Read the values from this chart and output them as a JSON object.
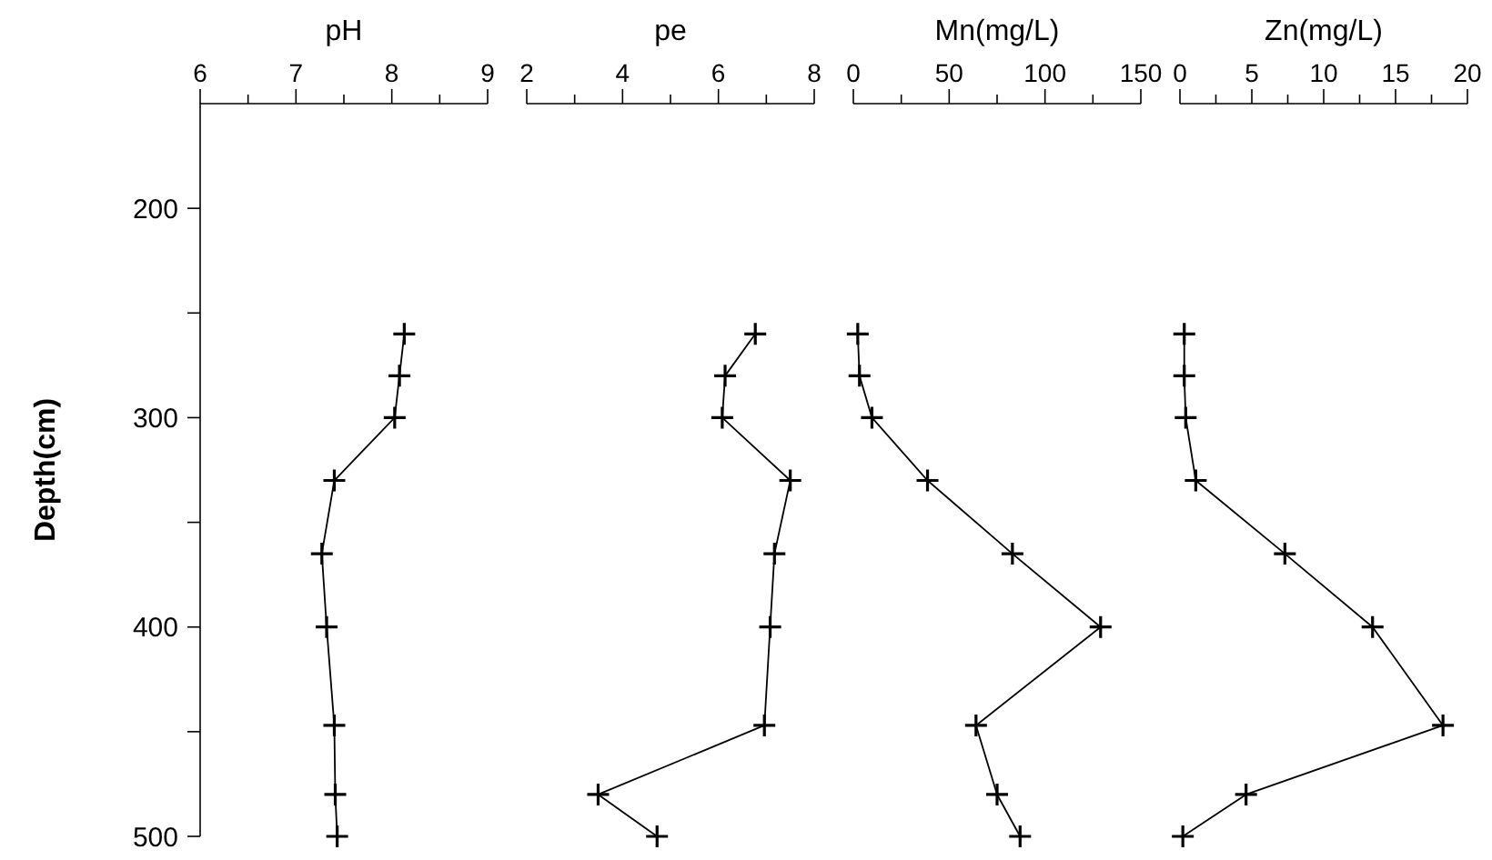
{
  "chart_data": [
    {
      "type": "line",
      "xlabel": "pH",
      "ylabel": "Depth(cm)",
      "xlim": [
        6,
        9
      ],
      "xticks": [
        6,
        {
          "value": 6.5,
          "label": null
        },
        7,
        {
          "value": 7.5,
          "label": null
        },
        8,
        {
          "value": 8.5,
          "label": null
        },
        9
      ],
      "ylim": [
        500,
        150
      ],
      "yticks": [
        200,
        {
          "value": 250,
          "label": null
        },
        300,
        {
          "value": 350,
          "label": null
        },
        400,
        {
          "value": 450,
          "label": null
        },
        500
      ],
      "marker": "cross",
      "grid": false,
      "series": [
        {
          "color": "#000000",
          "x": [
            8.13,
            8.08,
            8.03,
            7.4,
            7.27,
            7.32,
            7.4,
            7.41,
            7.43
          ],
          "values": [
            260,
            280,
            300,
            330,
            365,
            400,
            447,
            480,
            500
          ]
        }
      ]
    },
    {
      "type": "line",
      "xlabel": "pe",
      "xlim": [
        2,
        8
      ],
      "xticks": [
        2,
        {
          "value": 3,
          "label": null
        },
        4,
        {
          "value": 5,
          "label": null
        },
        6,
        {
          "value": 7,
          "label": null
        },
        8
      ],
      "ylim": [
        500,
        150
      ],
      "tick_labels": "x",
      "marker": "cross",
      "grid": false,
      "series": [
        {
          "color": "#000000",
          "x": [
            6.77,
            6.14,
            6.08,
            7.5,
            7.17,
            7.08,
            6.96,
            3.49,
            4.72
          ],
          "values": [
            260,
            280,
            300,
            330,
            365,
            400,
            447,
            480,
            500
          ]
        }
      ]
    },
    {
      "type": "line",
      "xlabel": "Mn(mg/L)",
      "xlim": [
        0,
        150
      ],
      "xticks": [
        0,
        {
          "value": 25,
          "label": null
        },
        50,
        {
          "value": 75,
          "label": null
        },
        100,
        {
          "value": 125,
          "label": null
        },
        150
      ],
      "ylim": [
        500,
        150
      ],
      "tick_labels": "x",
      "marker": "cross",
      "grid": false,
      "series": [
        {
          "color": "#000000",
          "x": [
            2.3,
            3.2,
            9.7,
            38.7,
            83,
            129,
            64,
            75,
            87
          ],
          "values": [
            260,
            280,
            300,
            330,
            365,
            400,
            447,
            480,
            500
          ]
        }
      ]
    },
    {
      "type": "line",
      "xlabel": "Zn(mg/L)",
      "xlim": [
        0,
        20
      ],
      "xticks": [
        0,
        {
          "value": 2.5,
          "label": null
        },
        5,
        {
          "value": 7.5,
          "label": null
        },
        10,
        {
          "value": 12.5,
          "label": null
        },
        15,
        {
          "value": 17.5,
          "label": null
        },
        20
      ],
      "ylim": [
        500,
        150
      ],
      "tick_labels": "x",
      "marker": "cross",
      "grid": false,
      "series": [
        {
          "color": "#000000",
          "x": [
            0.3,
            0.3,
            0.4,
            1.1,
            7.3,
            13.4,
            18.3,
            4.6,
            0.2
          ],
          "values": [
            260,
            280,
            300,
            330,
            365,
            400,
            447,
            480,
            500
          ]
        }
      ]
    }
  ]
}
